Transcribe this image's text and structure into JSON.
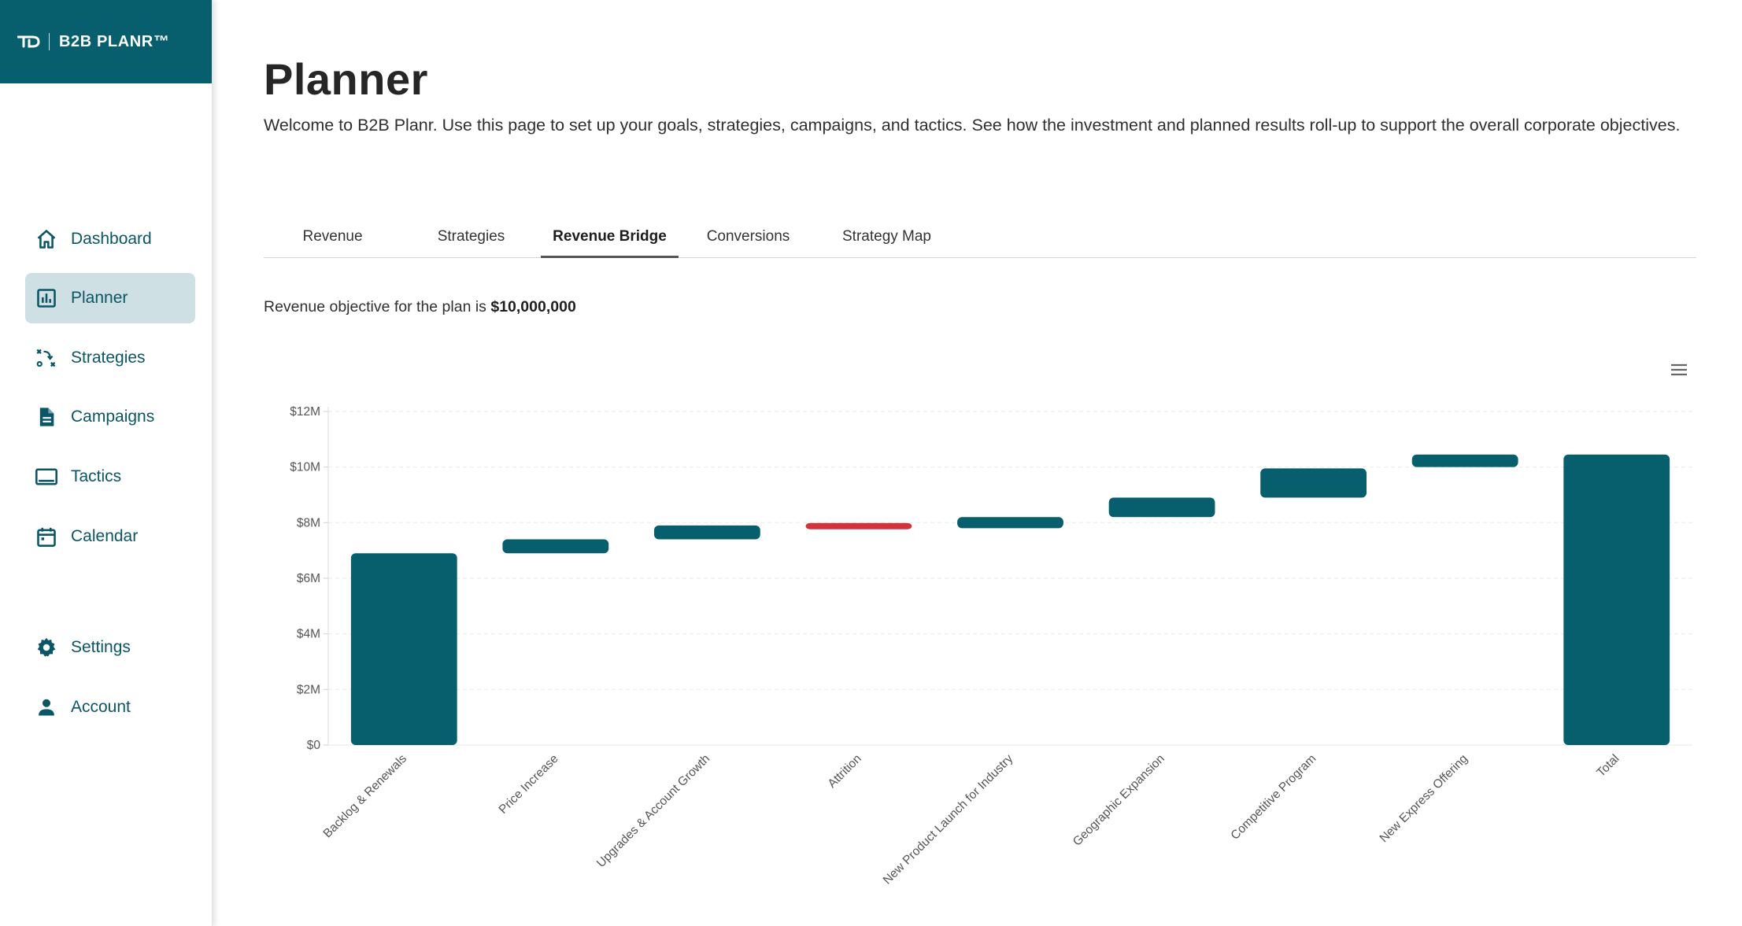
{
  "brand": {
    "name": "B2B PLANR™"
  },
  "sidebar": {
    "items": [
      {
        "label": "Dashboard",
        "icon": "home-icon"
      },
      {
        "label": "Planner",
        "icon": "bar-chart-icon",
        "active": true
      },
      {
        "label": "Strategies",
        "icon": "strategy-play-icon"
      },
      {
        "label": "Campaigns",
        "icon": "document-icon"
      },
      {
        "label": "Tactics",
        "icon": "monitor-icon"
      },
      {
        "label": "Calendar",
        "icon": "calendar-icon"
      },
      {
        "label": "Settings",
        "icon": "gear-icon"
      },
      {
        "label": "Account",
        "icon": "person-icon"
      }
    ]
  },
  "page": {
    "title": "Planner",
    "intro": "Welcome to B2B Planr. Use this page to set up your goals, strategies, campaigns, and tactics. See how the investment and planned results roll-up to support the overall corporate objectives."
  },
  "tabs": [
    {
      "label": "Revenue"
    },
    {
      "label": "Strategies"
    },
    {
      "label": "Revenue Bridge",
      "active": true
    },
    {
      "label": "Conversions"
    },
    {
      "label": "Strategy Map"
    }
  ],
  "objective": {
    "prefix": "Revenue objective for the plan is ",
    "amount": "$10,000,000"
  },
  "colors": {
    "brand": "#075e6d",
    "accent_bar": "#075e6d",
    "negative_bar": "#d0343a",
    "active_nav_bg": "#cfe0e4"
  },
  "chart_data": {
    "type": "bar",
    "subtype": "waterfall",
    "categories": [
      "Backlog & Renewals",
      "Price Increase",
      "Upgrades & Account Growth",
      "Attrition",
      "New Product Launch for Industry",
      "Geographic Expansion",
      "Competitive Program",
      "New Express Offering",
      "Total"
    ],
    "series": [
      {
        "values_start": [
          0,
          6.9,
          7.4,
          7.95,
          7.8,
          8.2,
          8.9,
          10.0,
          0
        ],
        "values_end": [
          6.9,
          7.4,
          7.9,
          7.8,
          8.2,
          8.9,
          9.95,
          10.45,
          10.45
        ]
      }
    ],
    "bar_colors": [
      "#075e6d",
      "#075e6d",
      "#075e6d",
      "#d0343a",
      "#075e6d",
      "#075e6d",
      "#075e6d",
      "#075e6d",
      "#075e6d"
    ],
    "ylim": [
      0,
      12
    ],
    "yticks": [
      "$0",
      "$2M",
      "$4M",
      "$6M",
      "$8M",
      "$10M",
      "$12M"
    ],
    "grid": true,
    "legend": "none"
  }
}
